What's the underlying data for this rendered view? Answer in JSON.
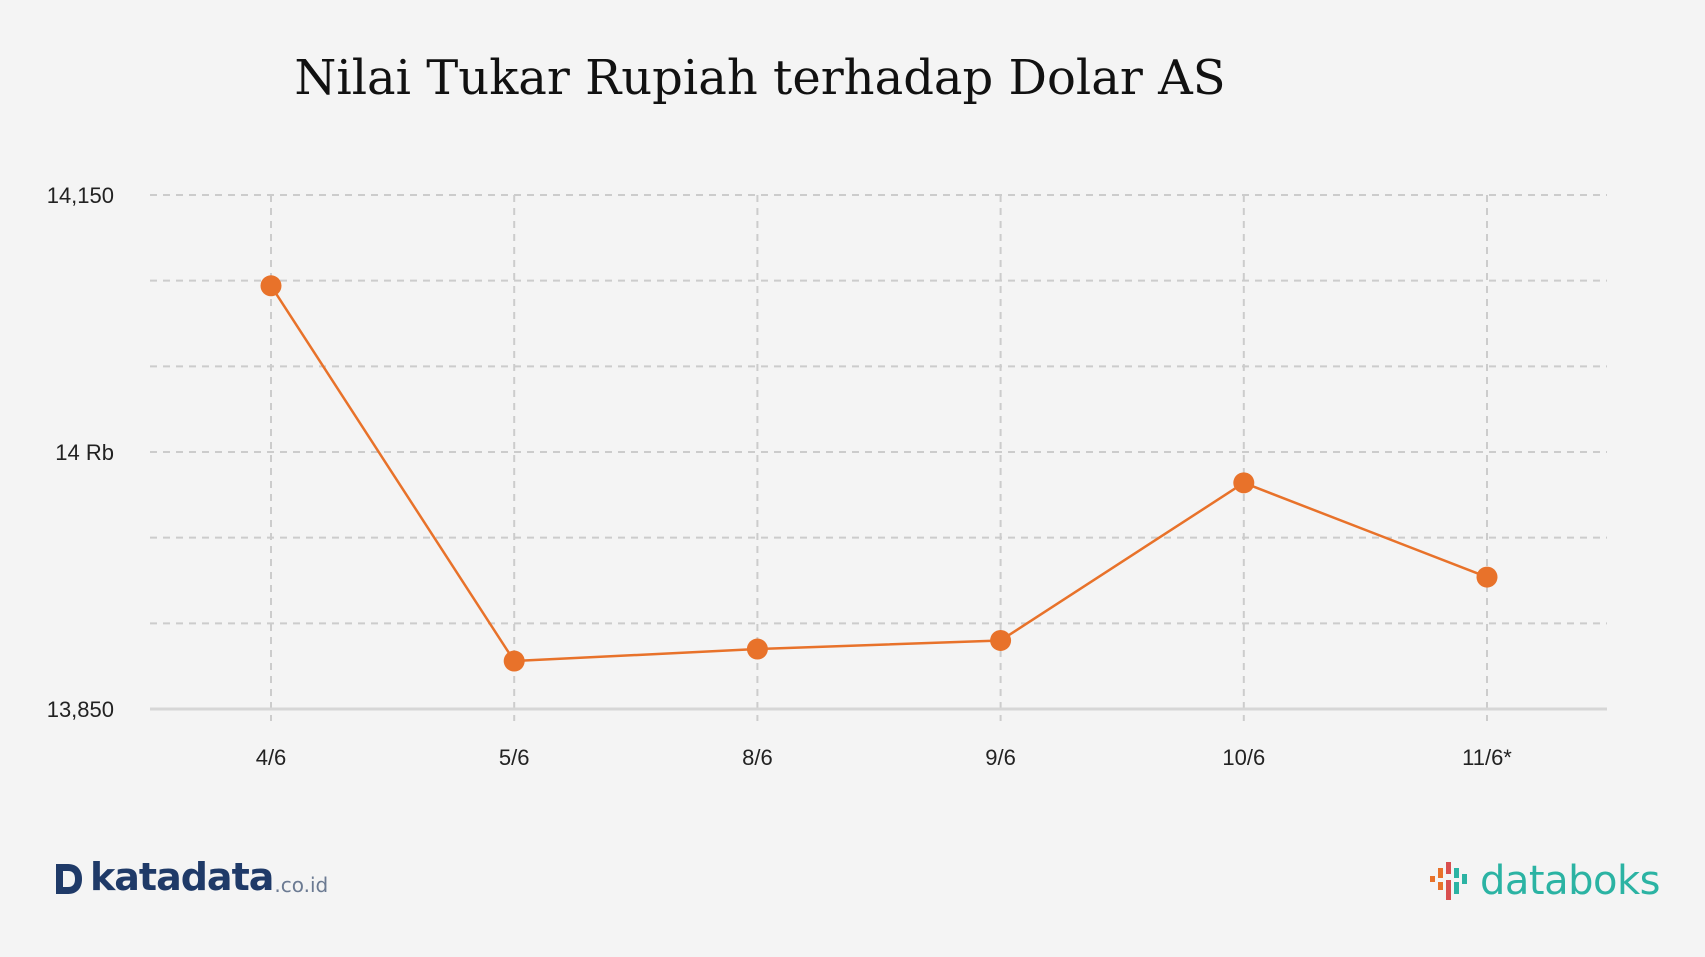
{
  "chart_data": {
    "type": "line",
    "title": "Nilai Tukar Rupiah terhadap Dolar AS",
    "xlabel": "",
    "ylabel": "",
    "categories": [
      "4/6",
      "5/6",
      "8/6",
      "9/6",
      "10/6",
      "11/6*"
    ],
    "series": [
      {
        "values": [
          14097,
          13878,
          13885,
          13890,
          13982,
          13927
        ]
      }
    ],
    "ylim": [
      13850,
      14150
    ],
    "yticks": [
      13850,
      14000,
      14150
    ],
    "ytick_labels": [
      "13,850",
      "14 Rb",
      "14,150"
    ],
    "grid": true,
    "line_color": "#e8722a",
    "grid_color": "#cccccc",
    "axis_color": "#d6d6d6",
    "label_color": "#222222"
  },
  "footer": {
    "left_brand": "katadata",
    "left_brand_suffix": ".co.id",
    "right_brand": "databoks",
    "left_brand_icon": "katadata-logo-icon",
    "right_brand_icon": "databoks-logo-icon",
    "left_brand_color": "#1f3a68",
    "right_brand_color": "#2bb3a3"
  }
}
